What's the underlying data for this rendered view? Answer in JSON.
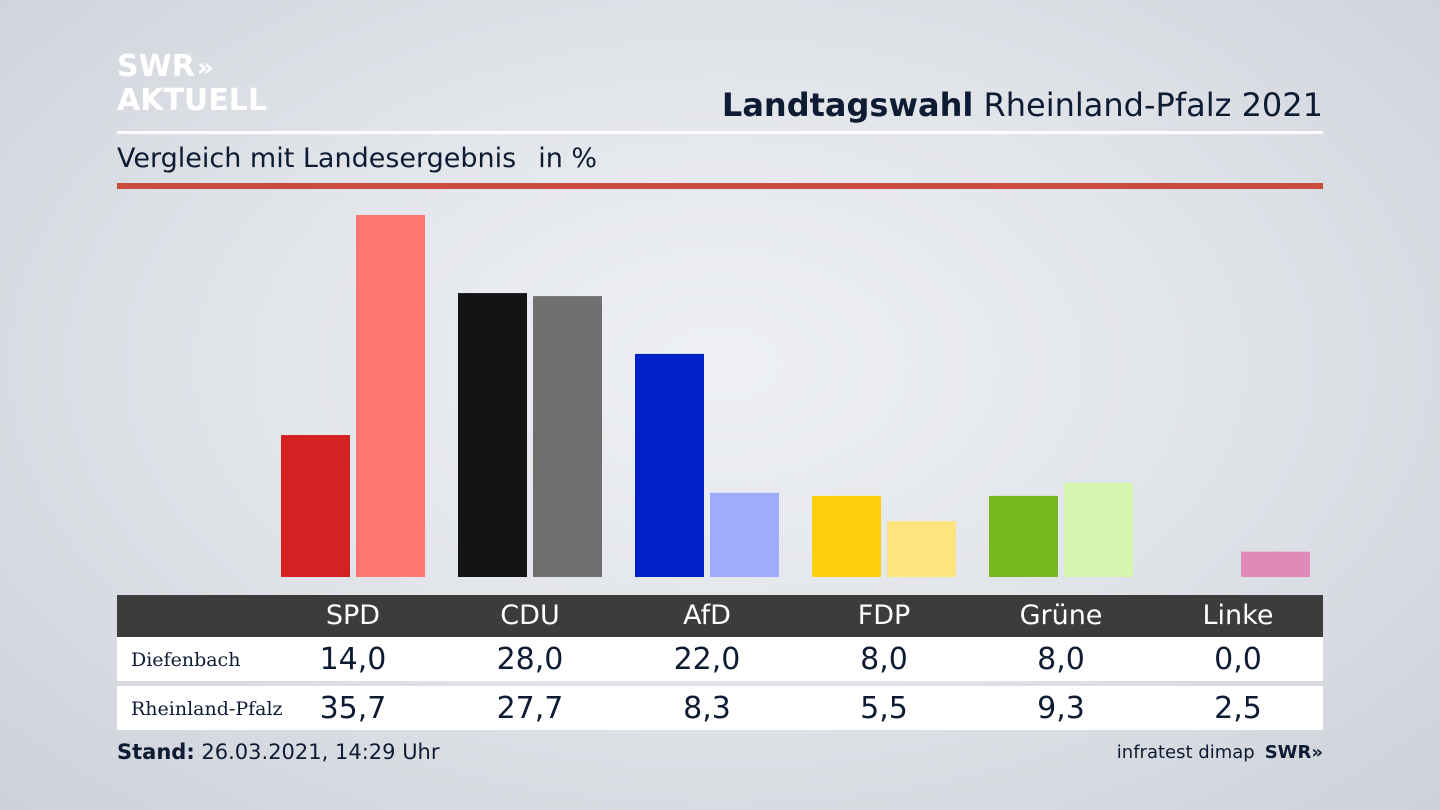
{
  "brand": {
    "logo_line1": "SWR",
    "logo_arrows": "»",
    "logo_line2": "AKTUELL"
  },
  "header": {
    "title_bold": "Landtagswahl",
    "title_rest": "Rheinland-Pfalz 2021"
  },
  "subtitle": {
    "text": "Vergleich mit Landesergebnis",
    "unit": "in %"
  },
  "colors": {
    "accent_rule": "#cc4b3c",
    "table_header_bg": "#3c3c3c"
  },
  "chart_data": {
    "type": "bar",
    "categories": [
      "SPD",
      "CDU",
      "AfD",
      "FDP",
      "Grüne",
      "Linke"
    ],
    "series": [
      {
        "name": "Diefenbach",
        "values": [
          14.0,
          28.0,
          22.0,
          8.0,
          8.0,
          0.0
        ],
        "display": [
          "14,0",
          "28,0",
          "22,0",
          "8,0",
          "8,0",
          "0,0"
        ],
        "colors": [
          "#d42121",
          "#141414",
          "#0021c6",
          "#fdcd0e",
          "#76b91f",
          "#d989b4"
        ]
      },
      {
        "name": "Rheinland-Pfalz",
        "values": [
          35.7,
          27.7,
          8.3,
          5.5,
          9.3,
          2.5
        ],
        "display": [
          "35,7",
          "27,7",
          "8,3",
          "5,5",
          "9,3",
          "2,5"
        ],
        "colors": [
          "#ff7570",
          "#716f6e",
          "#9fabfd",
          "#fee47d",
          "#d6f6af",
          "#df8ab8"
        ]
      }
    ],
    "ylim": [
      0,
      35.7
    ],
    "grid": false,
    "legend": "table-below"
  },
  "footer": {
    "stand_label": "Stand:",
    "stand_value": "26.03.2021, 14:29 Uhr",
    "source": "infratest dimap",
    "source_logo": "SWR»"
  }
}
